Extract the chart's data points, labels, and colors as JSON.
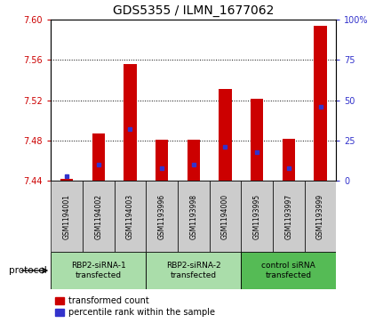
{
  "title": "GDS5355 / ILMN_1677062",
  "samples": [
    "GSM1194001",
    "GSM1194002",
    "GSM1194003",
    "GSM1193996",
    "GSM1193998",
    "GSM1194000",
    "GSM1193995",
    "GSM1193997",
    "GSM1193999"
  ],
  "transformed_count": [
    7.442,
    7.487,
    7.556,
    7.481,
    7.481,
    7.531,
    7.521,
    7.482,
    7.594
  ],
  "percentile_rank": [
    3,
    10,
    32,
    8,
    10,
    21,
    18,
    8,
    46
  ],
  "y_min": 7.44,
  "y_max": 7.6,
  "y_ticks": [
    7.44,
    7.48,
    7.52,
    7.56,
    7.6
  ],
  "y2_ticks": [
    0,
    25,
    50,
    75,
    100
  ],
  "bar_color": "#cc0000",
  "percentile_color": "#3333cc",
  "groups": [
    {
      "label": "RBP2-siRNA-1\ntransfected",
      "start": 0,
      "end": 3,
      "color": "#aaddaa"
    },
    {
      "label": "RBP2-siRNA-2\ntransfected",
      "start": 3,
      "end": 6,
      "color": "#aaddaa"
    },
    {
      "label": "control siRNA\ntransfected",
      "start": 6,
      "end": 9,
      "color": "#55bb55"
    }
  ],
  "protocol_label": "protocol",
  "left_color": "#cc0000",
  "right_color": "#3333cc",
  "grid_color": "#000000",
  "sample_bg_color": "#cccccc",
  "plot_bg_color": "#ffffff",
  "bar_width": 0.4,
  "title_fontsize": 10,
  "tick_fontsize": 7,
  "label_fontsize": 7,
  "legend_fontsize": 7
}
